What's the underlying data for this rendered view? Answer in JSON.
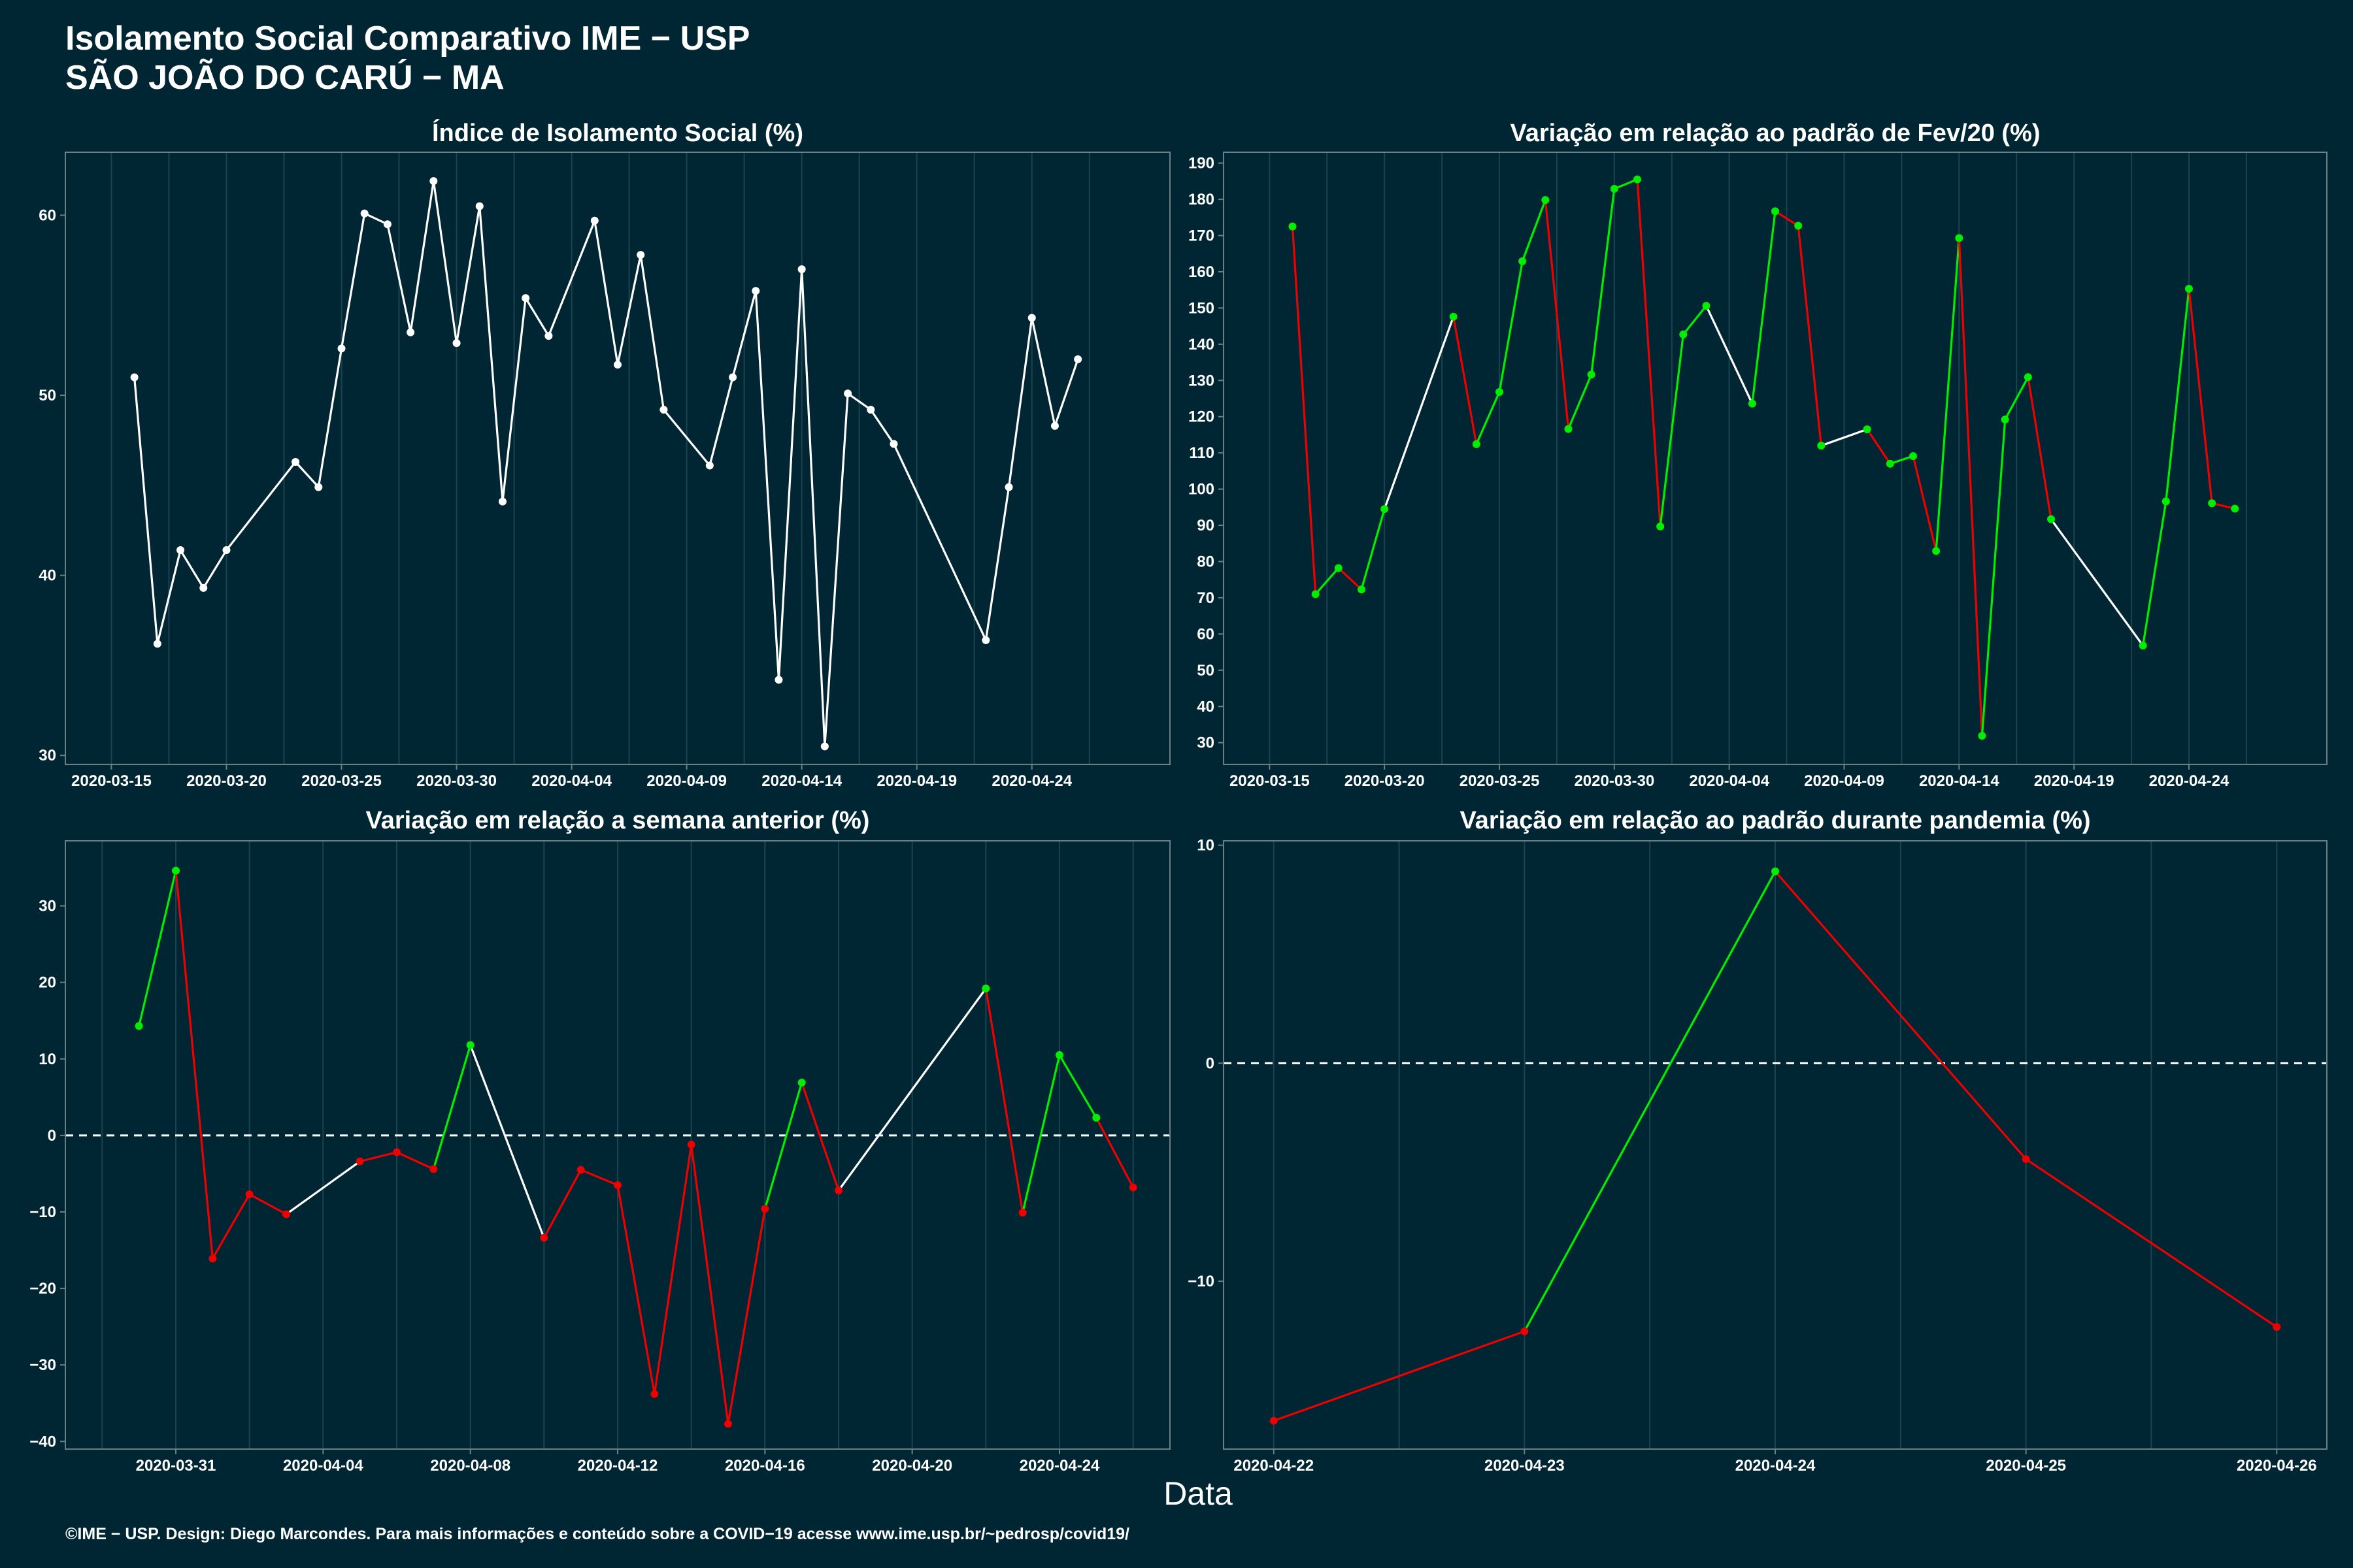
{
  "header": {
    "title": "Isolamento Social Comparativo IME − USP",
    "subtitle": "SÃO JOÃO DO CARÚ − MA"
  },
  "x_axis_title": "Data",
  "footer": "©IME − USP. Design: Diego Marcondes. Para mais informações e conteúdo sobre a COVID−19 acesse www.ime.usp.br/~pedrosp/covid19/",
  "colors": {
    "background": "#002633",
    "panel_border": "#6b7f86",
    "grid": "#1c4350",
    "neutral": "#ffffff",
    "increase": "#00ee00",
    "decrease": "#ee0000",
    "reference_line": "#ffffff"
  },
  "chart_data": [
    {
      "id": "isolation-index",
      "type": "line",
      "title": "Índice de Isolamento Social (%)",
      "color_mode": "single",
      "xlim": [
        "2020-03-13",
        "2020-04-30"
      ],
      "ylim": [
        29.5,
        63.5
      ],
      "x_ticks": [
        "2020-03-15",
        "2020-03-20",
        "2020-03-25",
        "2020-03-30",
        "2020-04-04",
        "2020-04-09",
        "2020-04-14",
        "2020-04-19",
        "2020-04-24"
      ],
      "y_ticks": [
        30,
        40,
        50,
        60
      ],
      "x": [
        "2020-03-16",
        "2020-03-17",
        "2020-03-18",
        "2020-03-19",
        "2020-03-20",
        "2020-03-23",
        "2020-03-24",
        "2020-03-25",
        "2020-03-26",
        "2020-03-27",
        "2020-03-28",
        "2020-03-29",
        "2020-03-30",
        "2020-03-31",
        "2020-04-01",
        "2020-04-02",
        "2020-04-03",
        "2020-04-05",
        "2020-04-06",
        "2020-04-07",
        "2020-04-08",
        "2020-04-10",
        "2020-04-11",
        "2020-04-12",
        "2020-04-13",
        "2020-04-14",
        "2020-04-15",
        "2020-04-16",
        "2020-04-17",
        "2020-04-18",
        "2020-04-22",
        "2020-04-23",
        "2020-04-24",
        "2020-04-25",
        "2020-04-26"
      ],
      "y": [
        51.0,
        36.2,
        41.4,
        39.3,
        41.4,
        46.3,
        44.9,
        52.6,
        60.1,
        59.5,
        53.5,
        61.9,
        52.9,
        60.5,
        44.1,
        55.4,
        53.3,
        59.7,
        51.7,
        57.8,
        49.2,
        46.1,
        51.0,
        55.8,
        34.2,
        57.0,
        30.5,
        50.1,
        49.2,
        47.3,
        36.4,
        44.9,
        54.3,
        48.3,
        52.0
      ]
    },
    {
      "id": "variation-vs-feb",
      "type": "line",
      "title": "Variação em relação ao padrão de Fev/20 (%)",
      "color_mode": "trend",
      "xlim": [
        "2020-03-13",
        "2020-04-30"
      ],
      "ylim": [
        24,
        193
      ],
      "x_ticks": [
        "2020-03-15",
        "2020-03-20",
        "2020-03-25",
        "2020-03-30",
        "2020-04-04",
        "2020-04-09",
        "2020-04-14",
        "2020-04-19",
        "2020-04-24"
      ],
      "y_ticks": [
        30,
        40,
        50,
        60,
        70,
        80,
        90,
        100,
        110,
        120,
        130,
        140,
        150,
        160,
        170,
        180,
        190
      ],
      "x": [
        "2020-03-16",
        "2020-03-17",
        "2020-03-18",
        "2020-03-19",
        "2020-03-20",
        "2020-03-23",
        "2020-03-24",
        "2020-03-25",
        "2020-03-26",
        "2020-03-27",
        "2020-03-28",
        "2020-03-29",
        "2020-03-30",
        "2020-03-31",
        "2020-04-01",
        "2020-04-02",
        "2020-04-03",
        "2020-04-05",
        "2020-04-06",
        "2020-04-07",
        "2020-04-08",
        "2020-04-10",
        "2020-04-11",
        "2020-04-12",
        "2020-04-13",
        "2020-04-14",
        "2020-04-15",
        "2020-04-16",
        "2020-04-17",
        "2020-04-18",
        "2020-04-22",
        "2020-04-23",
        "2020-04-24",
        "2020-04-25",
        "2020-04-26"
      ],
      "y": [
        172.5,
        71.0,
        78.2,
        72.3,
        94.5,
        147.6,
        112.4,
        126.8,
        162.9,
        179.8,
        116.6,
        131.6,
        182.9,
        185.5,
        89.7,
        142.7,
        150.6,
        123.6,
        176.7,
        172.7,
        112.0,
        116.5,
        107.0,
        109.1,
        82.9,
        169.3,
        31.9,
        119.2,
        130.9,
        91.7,
        56.8,
        96.6,
        155.3,
        96.1,
        94.6
      ]
    },
    {
      "id": "variation-vs-previous-week",
      "type": "line",
      "title": "Variação em relação a semana anterior (%)",
      "color_mode": "sign",
      "reference_line": 0,
      "xlim": [
        "2020-03-28",
        "2020-04-27"
      ],
      "ylim": [
        -41,
        38.5
      ],
      "x_ticks": [
        "2020-03-31",
        "2020-04-04",
        "2020-04-08",
        "2020-04-12",
        "2020-04-16",
        "2020-04-20",
        "2020-04-24"
      ],
      "y_ticks": [
        -40,
        -30,
        -20,
        -10,
        0,
        10,
        20,
        30
      ],
      "x": [
        "2020-03-30",
        "2020-03-31",
        "2020-04-01",
        "2020-04-02",
        "2020-04-03",
        "2020-04-05",
        "2020-04-06",
        "2020-04-07",
        "2020-04-08",
        "2020-04-10",
        "2020-04-11",
        "2020-04-12",
        "2020-04-13",
        "2020-04-14",
        "2020-04-15",
        "2020-04-16",
        "2020-04-17",
        "2020-04-18",
        "2020-04-22",
        "2020-04-23",
        "2020-04-24",
        "2020-04-25",
        "2020-04-26"
      ],
      "y": [
        14.3,
        34.6,
        -16.1,
        -7.7,
        -10.3,
        -3.4,
        -2.2,
        -4.4,
        11.8,
        -13.4,
        -4.5,
        -6.5,
        -33.8,
        -1.2,
        -37.7,
        -9.6,
        6.9,
        -7.2,
        19.2,
        -10.1,
        10.5,
        2.3,
        -6.8
      ]
    },
    {
      "id": "variation-vs-pandemic",
      "type": "line",
      "title": "Variação em relação ao padrão durante pandemia (%)",
      "color_mode": "sign",
      "reference_line": 0,
      "xlim": [
        "2020-04-21.8",
        "2020-04-26.2"
      ],
      "ylim": [
        -17.7,
        10.2
      ],
      "x_ticks": [
        "2020-04-22",
        "2020-04-23",
        "2020-04-24",
        "2020-04-25",
        "2020-04-26"
      ],
      "y_ticks": [
        -10,
        0,
        10
      ],
      "x": [
        "2020-04-22",
        "2020-04-23",
        "2020-04-24",
        "2020-04-25",
        "2020-04-26"
      ],
      "y": [
        -16.4,
        -12.3,
        8.8,
        -4.4,
        -12.1
      ]
    }
  ]
}
